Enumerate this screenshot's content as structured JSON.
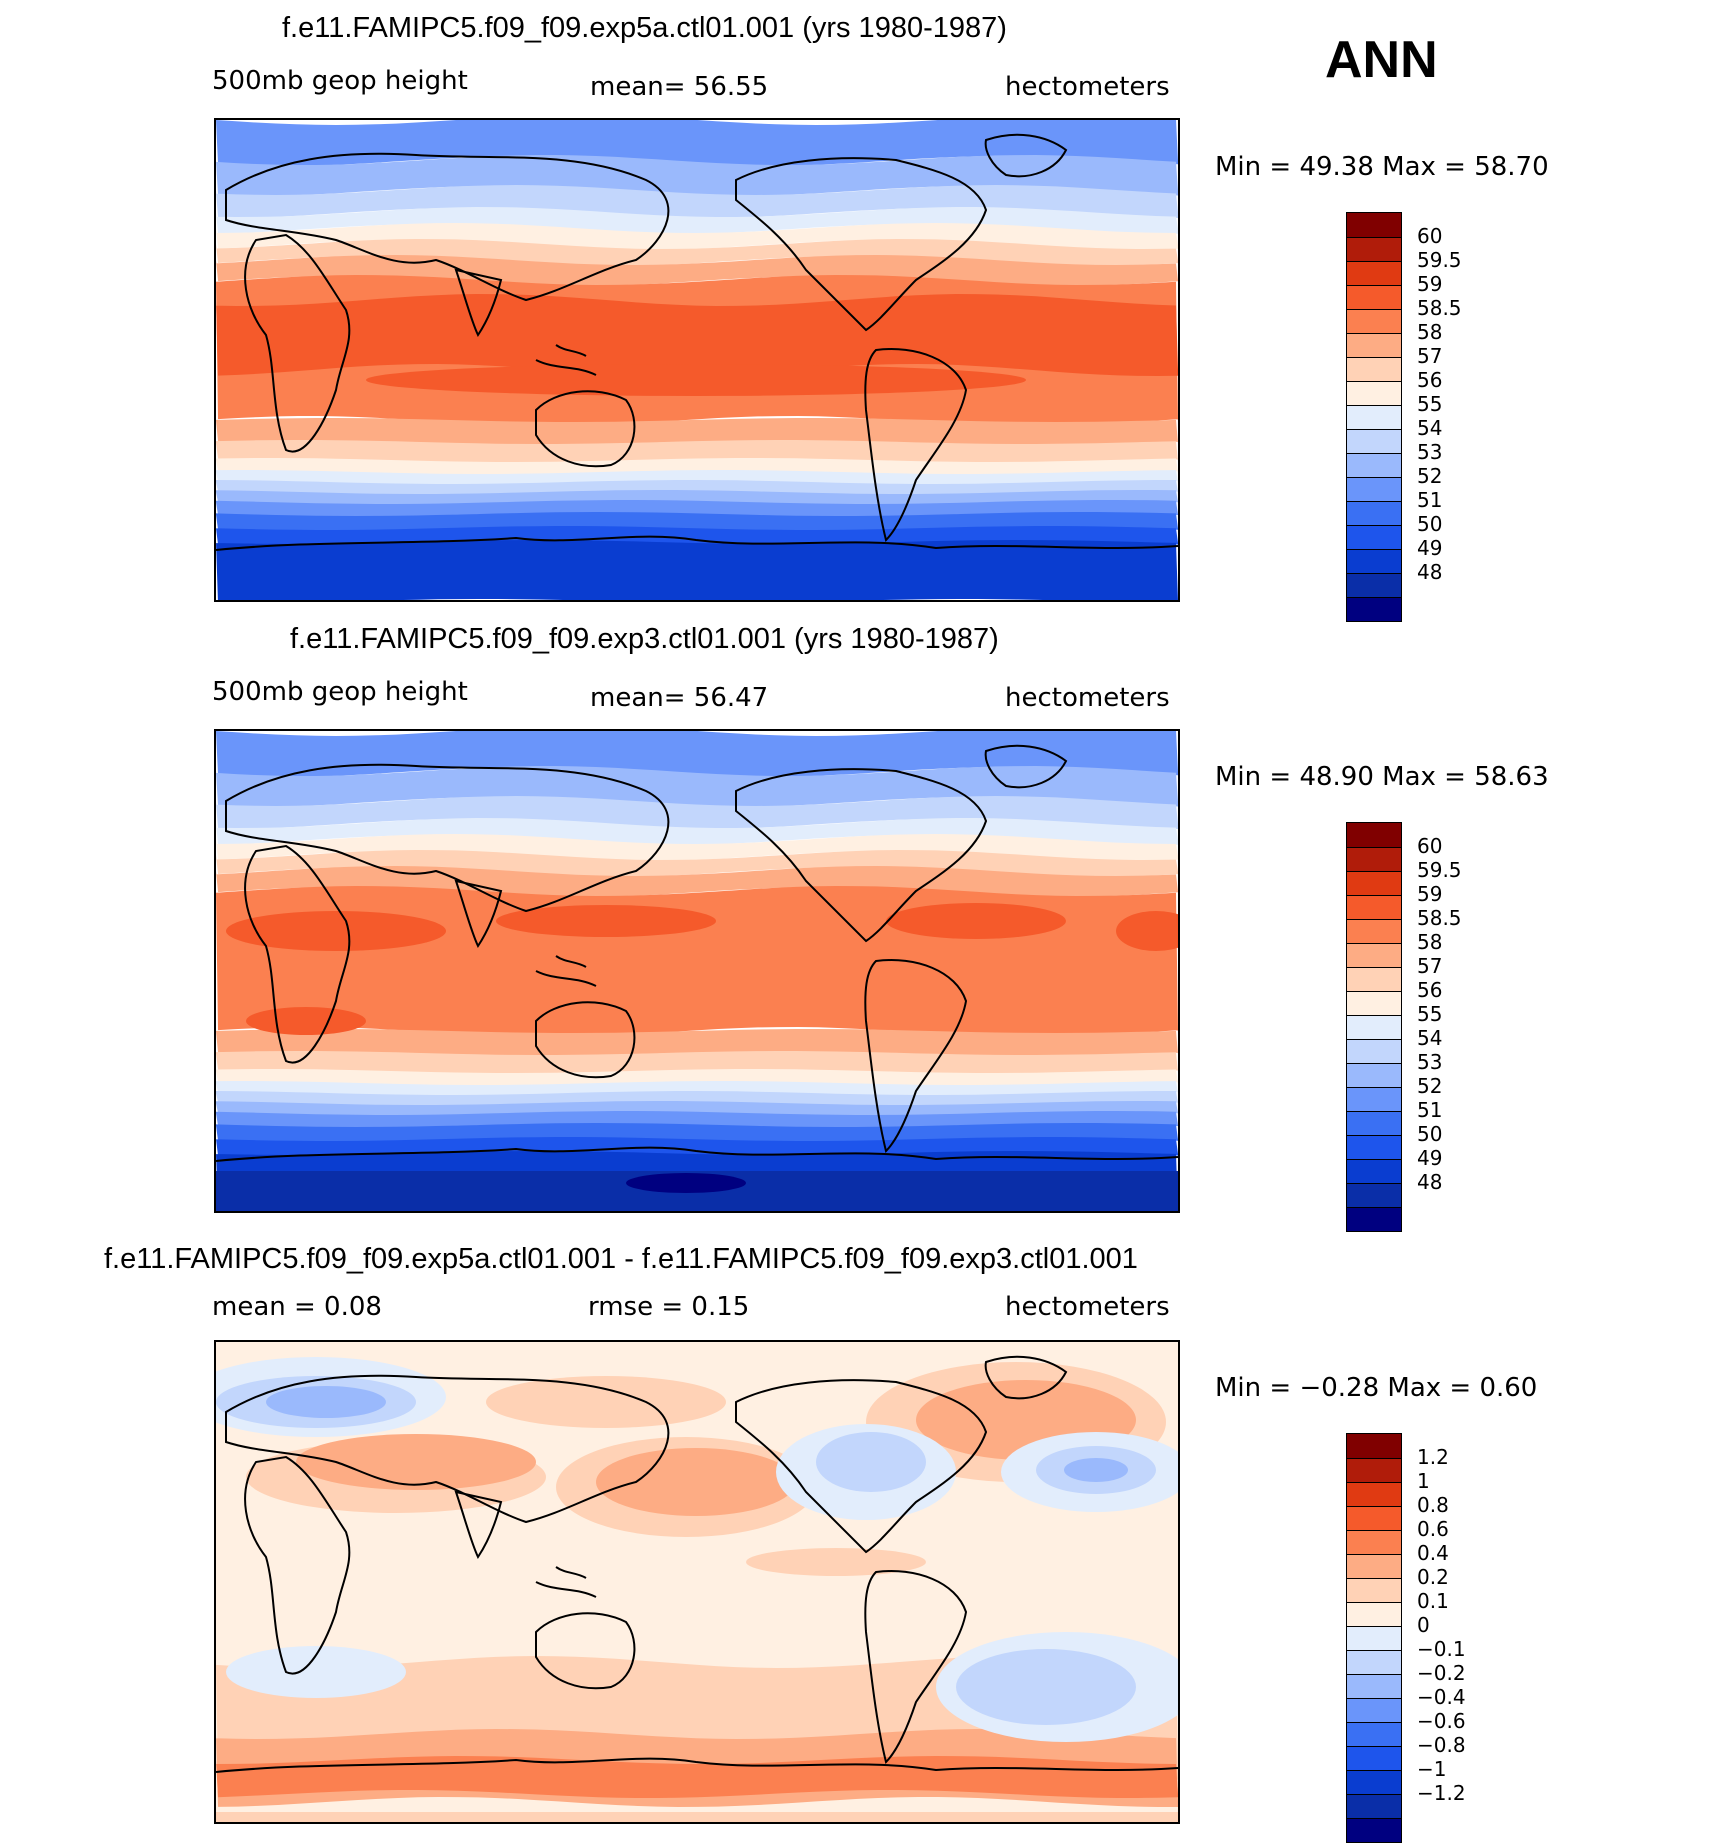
{
  "season": "ANN",
  "colors": {
    "levels_height": [
      "#000080",
      "#0a2ea8",
      "#0a3dd0",
      "#1e55ec",
      "#3a70f3",
      "#6a95fa",
      "#9ab9fc",
      "#c2d6fc",
      "#e2edfc",
      "#fff0e2",
      "#ffd2b6",
      "#fdac84",
      "#fb8050",
      "#f55a2b",
      "#e03a12",
      "#b01c0a",
      "#800000"
    ],
    "levels_diff": [
      "#000080",
      "#0a2ea8",
      "#0a3dd0",
      "#1e55ec",
      "#3a70f3",
      "#6a95fa",
      "#9ab9fc",
      "#c2d6fc",
      "#e2edfc",
      "#fff0e2",
      "#ffd2b6",
      "#fdac84",
      "#fb8050",
      "#f55a2b",
      "#e03a12",
      "#b01c0a",
      "#800000"
    ]
  },
  "panels": [
    {
      "title": "f.e11.FAMIPC5.f09_f09.exp5a.ctl01.001 (yrs 1980-1987)",
      "left_label": "500mb  geop  height",
      "center_label": "mean=   56.55",
      "right_label": "hectometers",
      "minmax": "Min =    49.38  Max =    58.70",
      "colorbar_labels": [
        "60",
        "59.5",
        "59",
        "58.5",
        "58",
        "57",
        "56",
        "55",
        "54",
        "53",
        "52",
        "51",
        "50",
        "49",
        "48"
      ]
    },
    {
      "title": "f.e11.FAMIPC5.f09_f09.exp3.ctl01.001 (yrs 1980-1987)",
      "left_label": "500mb  geop  height",
      "center_label": "mean=   56.47",
      "right_label": "hectometers",
      "minmax": "Min =    48.90  Max =    58.63",
      "colorbar_labels": [
        "60",
        "59.5",
        "59",
        "58.5",
        "58",
        "57",
        "56",
        "55",
        "54",
        "53",
        "52",
        "51",
        "50",
        "49",
        "48"
      ]
    },
    {
      "title": "f.e11.FAMIPC5.f09_f09.exp5a.ctl01.001 - f.e11.FAMIPC5.f09_f09.exp3.ctl01.001",
      "left_label": "mean =     0.08",
      "center_label": "rmse =     0.15",
      "right_label": "hectometers",
      "minmax": "Min =   −0.28  Max =     0.60",
      "colorbar_labels": [
        "1.2",
        "1",
        "0.8",
        "0.6",
        "0.4",
        "0.2",
        "0.1",
        "0",
        "−0.1",
        "−0.2",
        "−0.4",
        "−0.6",
        "−0.8",
        "−1",
        "−1.2"
      ]
    }
  ],
  "chart_data": [
    {
      "type": "heatmap",
      "title": "f.e11.FAMIPC5.f09_f09.exp5a.ctl01.001 (yrs 1980-1987)",
      "variable": "500mb geop height",
      "units": "hectometers",
      "mean": 56.55,
      "min": 49.38,
      "max": 58.7,
      "contour_levels": [
        48,
        49,
        50,
        51,
        52,
        53,
        54,
        55,
        56,
        57,
        58,
        58.5,
        59,
        59.5,
        60
      ]
    },
    {
      "type": "heatmap",
      "title": "f.e11.FAMIPC5.f09_f09.exp3.ctl01.001 (yrs 1980-1987)",
      "variable": "500mb geop height",
      "units": "hectometers",
      "mean": 56.47,
      "min": 48.9,
      "max": 58.63,
      "contour_levels": [
        48,
        49,
        50,
        51,
        52,
        53,
        54,
        55,
        56,
        57,
        58,
        58.5,
        59,
        59.5,
        60
      ]
    },
    {
      "type": "heatmap",
      "title": "f.e11.FAMIPC5.f09_f09.exp5a.ctl01.001 - f.e11.FAMIPC5.f09_f09.exp3.ctl01.001",
      "units": "hectometers",
      "mean": 0.08,
      "rmse": 0.15,
      "min": -0.28,
      "max": 0.6,
      "contour_levels": [
        -1.2,
        -1,
        -0.8,
        -0.6,
        -0.4,
        -0.2,
        -0.1,
        0,
        0.1,
        0.2,
        0.4,
        0.6,
        0.8,
        1,
        1.2
      ]
    }
  ]
}
